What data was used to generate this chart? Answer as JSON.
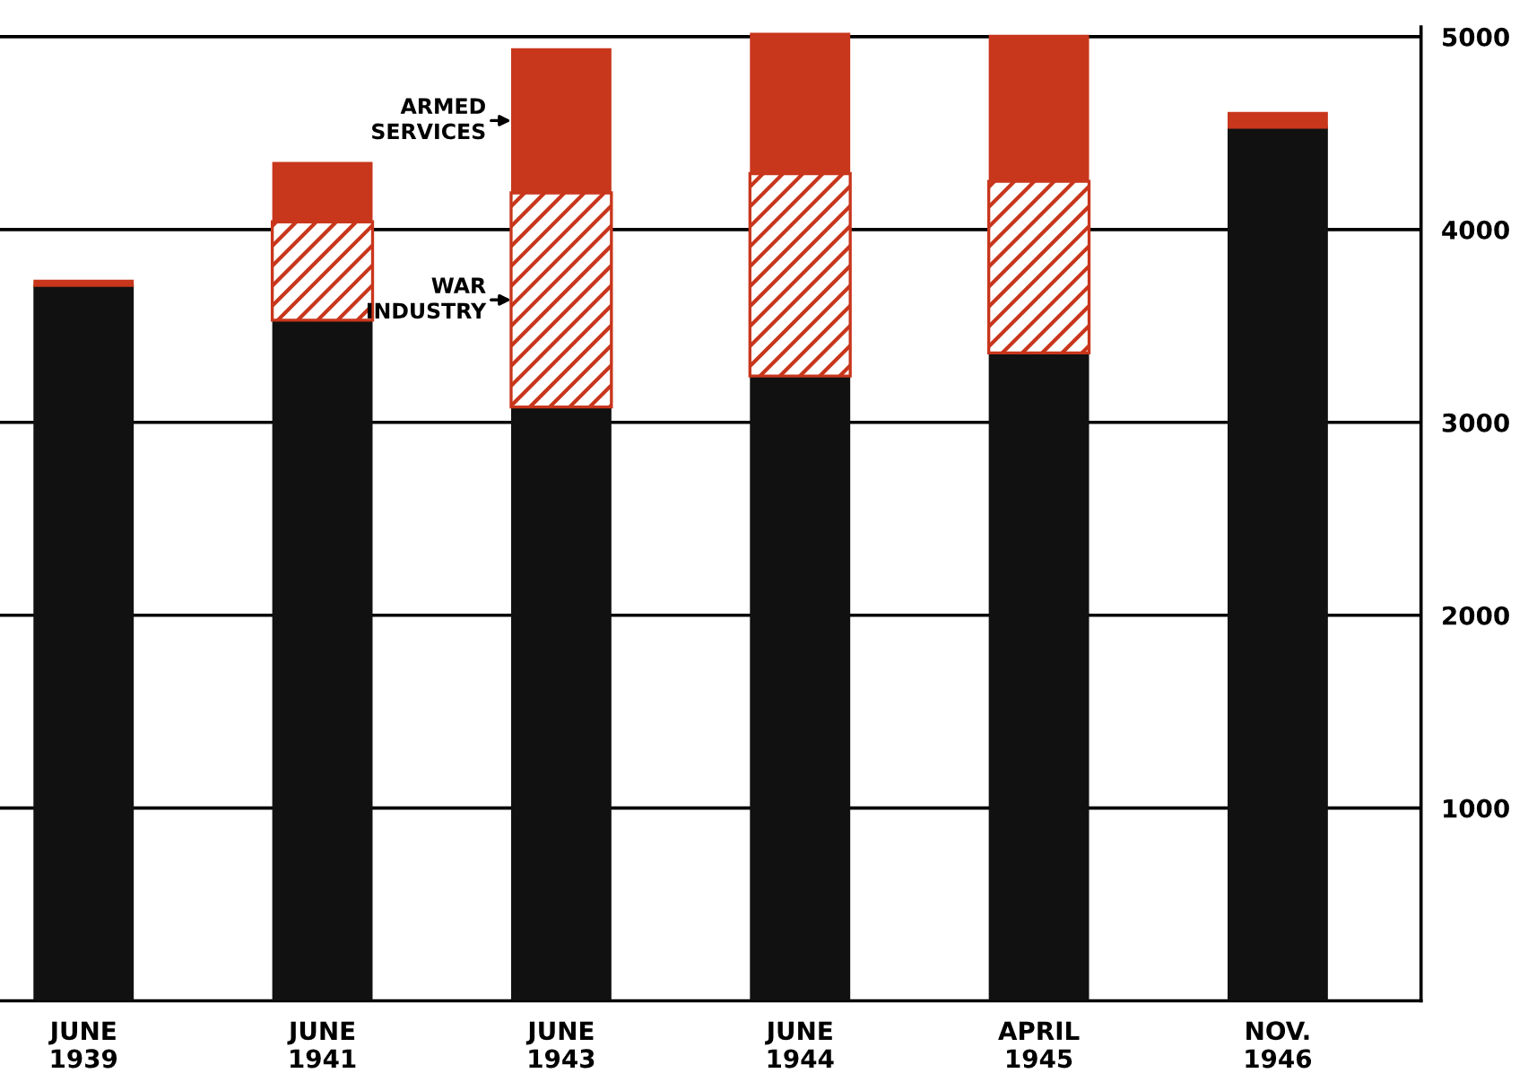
{
  "chart_data": {
    "type": "bar",
    "stacked": true,
    "categories": [
      "JUNE\n1939",
      "JUNE\n1941",
      "JUNE\n1943",
      "JUNE\n1944",
      "APRIL\n1945",
      "NOV.\n1946"
    ],
    "series": [
      {
        "color": "#111111",
        "values": [
          3710,
          3530,
          3080,
          3240,
          3360,
          4530
        ]
      },
      {
        "name": "WAR\nINDUSTRY",
        "color": "#c8361c",
        "values": [
          0,
          510,
          1110,
          1050,
          890,
          0
        ]
      },
      {
        "name": "ARMED\nSERVICES",
        "color": "#c8361c",
        "values": [
          30,
          310,
          750,
          730,
          760,
          80
        ]
      }
    ],
    "ylim": [
      0,
      5050
    ],
    "yticks": [
      1000,
      2000,
      3000,
      4000,
      5000
    ],
    "grid": "y",
    "legend": false
  }
}
